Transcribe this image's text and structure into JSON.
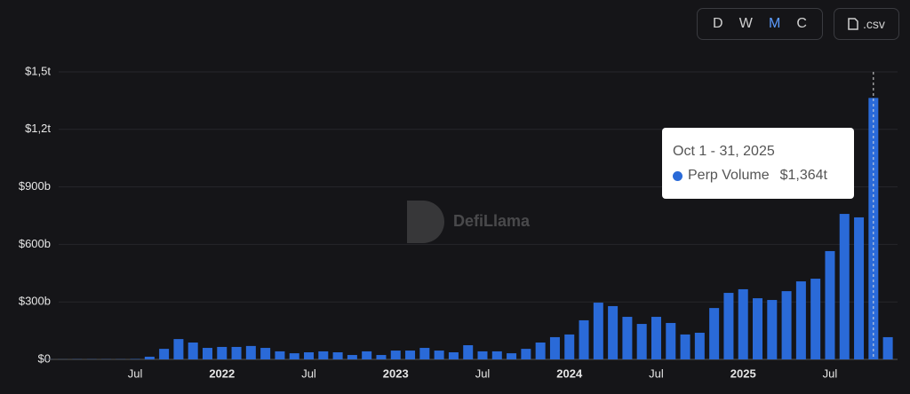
{
  "controls": [
    "D",
    "W",
    "M",
    "C"
  ],
  "active_control": "M",
  "export_label": ".csv",
  "watermark": "DefiLlama",
  "chart_data": {
    "type": "bar",
    "categories": [
      null,
      null,
      null,
      null,
      null,
      null,
      "Jul",
      null,
      null,
      null,
      null,
      null,
      "2022",
      null,
      null,
      null,
      null,
      null,
      "Jul",
      null,
      null,
      null,
      null,
      null,
      "2023",
      null,
      null,
      null,
      null,
      null,
      "Jul",
      null,
      null,
      null,
      null,
      null,
      "2024",
      null,
      null,
      null,
      null,
      null,
      "Jul",
      null,
      null,
      null,
      null,
      null,
      "2025",
      null,
      null,
      null,
      null,
      null,
      "Jul",
      null,
      null,
      null,
      null
    ],
    "series": [
      {
        "name": "Perp Volume",
        "color": "#2a6ad8",
        "values": [
          0.5,
          0.5,
          1,
          1,
          1,
          1,
          2,
          14,
          55,
          106,
          88,
          60,
          65,
          65,
          70,
          60,
          42,
          32,
          37,
          42,
          37,
          23,
          42,
          23,
          46,
          46,
          60,
          46,
          37,
          74,
          42,
          42,
          32,
          55,
          88,
          116,
          130,
          204,
          296,
          278,
          222,
          185,
          222,
          190,
          130,
          139,
          268,
          347,
          366,
          319,
          310,
          356,
          407,
          421,
          565,
          759,
          741,
          1364,
          116
        ]
      }
    ],
    "ylim": [
      0,
      1500
    ],
    "yticks": [
      {
        "value": 0,
        "label": "$0"
      },
      {
        "value": 300,
        "label": "$300b"
      },
      {
        "value": 600,
        "label": "$600b"
      },
      {
        "value": 900,
        "label": "$900b"
      },
      {
        "value": 1200,
        "label": "$1,2t"
      },
      {
        "value": 1500,
        "label": "$1,5t"
      }
    ],
    "grid": true,
    "tooltip": {
      "title": "Oct 1 - 31, 2025",
      "value": 1364,
      "value_label": "$1,364t"
    }
  }
}
